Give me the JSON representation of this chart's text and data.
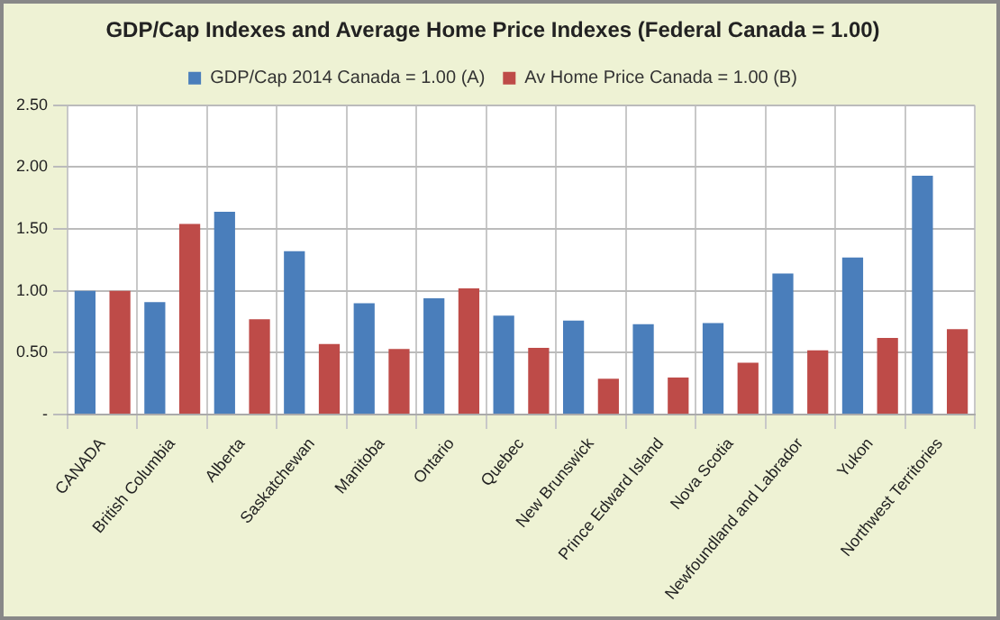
{
  "chart_data": {
    "type": "bar",
    "title": "GDP/Cap Indexes and Average Home Price Indexes (Federal Canada = 1.00)",
    "categories": [
      "CANADA",
      "British Columbia",
      "Alberta",
      "Saskatchewan",
      "Manitoba",
      "Ontario",
      "Quebec",
      "New Brunswick",
      "Prince Edward Island",
      "Nova Scotia",
      "Newfoundland and Labrador",
      "Yukon",
      "Northwest Territories"
    ],
    "series": [
      {
        "name": "GDP/Cap 2014 Canada = 1.00 (A)",
        "color": "#4a7ebb",
        "values": [
          1.0,
          0.91,
          1.64,
          1.32,
          0.9,
          0.94,
          0.8,
          0.76,
          0.73,
          0.74,
          1.14,
          1.27,
          1.93
        ]
      },
      {
        "name": "Av Home Price Canada = 1.00 (B)",
        "color": "#be4b48",
        "values": [
          1.0,
          1.54,
          0.77,
          0.57,
          0.53,
          1.02,
          0.54,
          0.29,
          0.3,
          0.42,
          0.52,
          0.62,
          0.69
        ]
      }
    ],
    "ylim": [
      0,
      2.5
    ],
    "yticks": [
      {
        "value": 0,
        "label": "-"
      },
      {
        "value": 0.5,
        "label": "0.50"
      },
      {
        "value": 1,
        "label": "1.00"
      },
      {
        "value": 1.5,
        "label": "1.50"
      },
      {
        "value": 2,
        "label": "2.00"
      },
      {
        "value": 2.5,
        "label": "2.50"
      }
    ],
    "grid": true,
    "legend": "top"
  }
}
